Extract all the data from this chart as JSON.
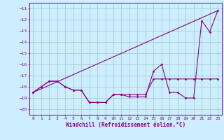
{
  "xlabel": "Windchill (Refroidissement éolien,°C)",
  "background_color": "#cceeff",
  "grid_color": "#aacccc",
  "line_color": "#880088",
  "x_ticks": [
    0,
    1,
    2,
    3,
    4,
    5,
    6,
    7,
    8,
    9,
    10,
    11,
    12,
    13,
    14,
    15,
    16,
    17,
    18,
    19,
    20,
    21,
    22,
    23
  ],
  "y_ticks": [
    -11,
    -12,
    -13,
    -14,
    -15,
    -16,
    -17,
    -18,
    -19,
    -20
  ],
  "xlim": [
    -0.5,
    23.5
  ],
  "ylim": [
    -20.5,
    -10.5
  ],
  "line1_y": [
    -18.5,
    -18.0,
    -17.5,
    -17.5,
    -18.0,
    -18.3,
    -18.3,
    -19.4,
    -19.4,
    -19.4,
    -18.7,
    -18.7,
    -18.7,
    -18.7,
    -18.7,
    -17.3,
    -17.3,
    -17.3,
    -17.3,
    -17.3,
    -17.3,
    -17.3,
    -17.3,
    -17.3
  ],
  "line2_y": [
    -18.5,
    -18.0,
    -17.5,
    -17.5,
    -18.0,
    -18.3,
    -18.3,
    -19.4,
    -19.4,
    -19.4,
    -18.7,
    -18.7,
    -18.9,
    -18.9,
    -18.9,
    -16.6,
    -16.0,
    -18.5,
    -18.5,
    -19.0,
    -19.0,
    -12.1,
    -13.1,
    -11.2
  ],
  "line3_x": [
    0,
    23
  ],
  "line3_y": [
    -18.5,
    -11.2
  ]
}
